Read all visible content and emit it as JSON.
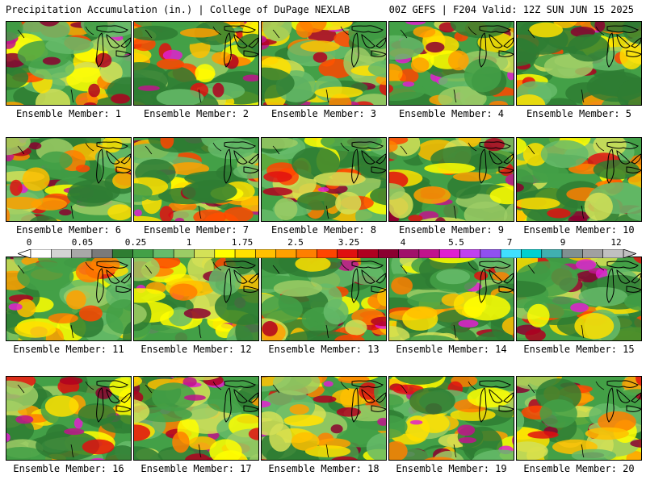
{
  "header": {
    "title": "Precipitation Accumulation (in.) | College of DuPage NEXLAB",
    "run_info": "00Z GEFS | F204 Valid: 12Z SUN JUN 15 2025"
  },
  "panels": [
    {
      "label": "Ensemble Member: 1",
      "seed": 11
    },
    {
      "label": "Ensemble Member: 2",
      "seed": 23
    },
    {
      "label": "Ensemble Member: 3",
      "seed": 37
    },
    {
      "label": "Ensemble Member: 4",
      "seed": 41
    },
    {
      "label": "Ensemble Member: 5",
      "seed": 53
    },
    {
      "label": "Ensemble Member: 6",
      "seed": 67
    },
    {
      "label": "Ensemble Member: 7",
      "seed": 71
    },
    {
      "label": "Ensemble Member: 8",
      "seed": 83
    },
    {
      "label": "Ensemble Member: 9",
      "seed": 97
    },
    {
      "label": "Ensemble Member: 10",
      "seed": 101
    },
    {
      "label": "Ensemble Member: 11",
      "seed": 113
    },
    {
      "label": "Ensemble Member: 12",
      "seed": 127
    },
    {
      "label": "Ensemble Member: 13",
      "seed": 131
    },
    {
      "label": "Ensemble Member: 14",
      "seed": 149
    },
    {
      "label": "Ensemble Member: 15",
      "seed": 151
    },
    {
      "label": "Ensemble Member: 16",
      "seed": 163
    },
    {
      "label": "Ensemble Member: 17",
      "seed": 173
    },
    {
      "label": "Ensemble Member: 18",
      "seed": 181
    },
    {
      "label": "Ensemble Member: 19",
      "seed": 191
    },
    {
      "label": "Ensemble Member: 20",
      "seed": 199
    }
  ],
  "colorbar": {
    "labels": [
      "0",
      "0.05",
      "0.25",
      "1",
      "1.75",
      "2.5",
      "3.25",
      "4",
      "5.5",
      "7",
      "9",
      "12"
    ],
    "colors": [
      "#ffffff",
      "#d4d4d4",
      "#a8a8a8",
      "#7a7a7a",
      "#2e7d32",
      "#43a047",
      "#66bb6a",
      "#9ccc65",
      "#d4e157",
      "#ffff00",
      "#ffe000",
      "#ffc000",
      "#ffa000",
      "#ff7f00",
      "#ff4500",
      "#e01010",
      "#b00020",
      "#8b0030",
      "#a0106a",
      "#c0148c",
      "#e020d0",
      "#c040f0",
      "#9050f0",
      "#40e0ff",
      "#00d0d0",
      "#40b0b0",
      "#809090",
      "#a0a0a0",
      "#c0c0c0"
    ]
  }
}
